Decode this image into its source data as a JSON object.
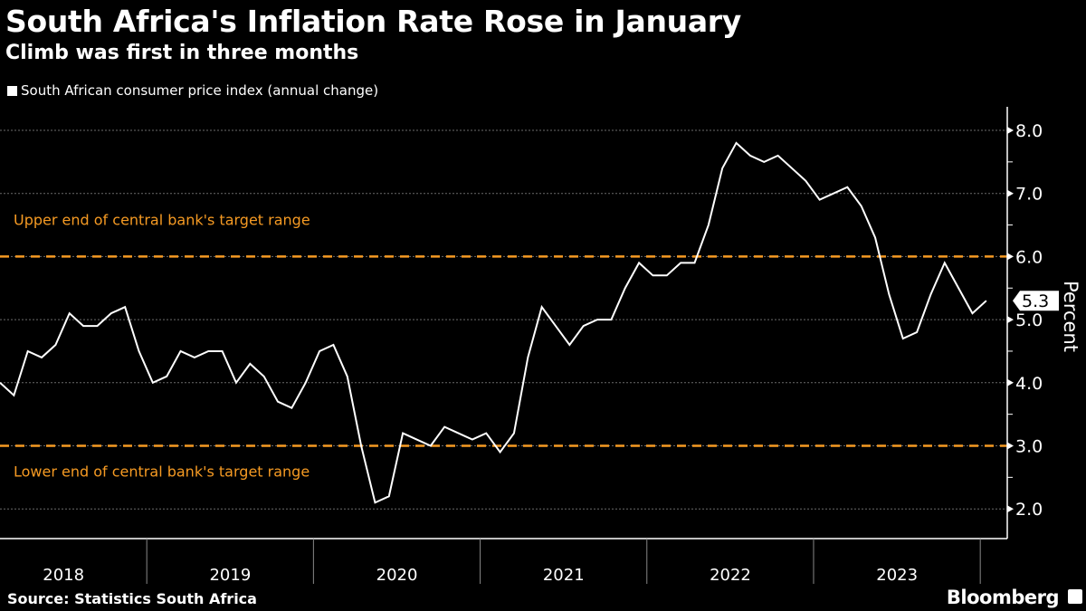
{
  "header": {
    "title": "South Africa's Inflation Rate Rose in January",
    "subtitle": "Climb was first in three months"
  },
  "legend": {
    "label": "South African consumer price index (annual change)"
  },
  "footer": {
    "source": "Source: Statistics South Africa",
    "brand": "Bloomberg"
  },
  "colors": {
    "line": "#ffffff",
    "reference": "#f59a23",
    "grid": "#6b6b6b"
  },
  "chart_data": {
    "type": "line",
    "title": "South Africa's Inflation Rate Rose in January",
    "ylabel": "Percent",
    "ylim": [
      1.5,
      8.4
    ],
    "yticks": [
      "2.0",
      "3.0",
      "4.0",
      "5.0",
      "6.0",
      "7.0",
      "8.0"
    ],
    "ytick_values": [
      2,
      3,
      4,
      5,
      6,
      7,
      8
    ],
    "xticks": [
      "2018",
      "2019",
      "2020",
      "2021",
      "2022",
      "2023"
    ],
    "start": "2018-02",
    "end": "2024-01",
    "last_value_label": "5.3",
    "reference_lines": [
      {
        "value": 6.0,
        "label": "Upper end of central bank's target range"
      },
      {
        "value": 3.0,
        "label": "Lower end of central bank's target range"
      }
    ],
    "series": [
      {
        "name": "South African consumer price index (annual change)",
        "values": [
          4.0,
          3.8,
          4.5,
          4.4,
          4.6,
          5.1,
          4.9,
          4.9,
          5.1,
          5.2,
          4.5,
          4.0,
          4.1,
          4.5,
          4.4,
          4.5,
          4.5,
          4.0,
          4.3,
          4.1,
          3.7,
          3.6,
          4.0,
          4.5,
          4.6,
          4.1,
          3.0,
          2.1,
          2.2,
          3.2,
          3.1,
          3.0,
          3.3,
          3.2,
          3.1,
          3.2,
          2.9,
          3.2,
          4.4,
          5.2,
          4.9,
          4.6,
          4.9,
          5.0,
          5.0,
          5.5,
          5.9,
          5.7,
          5.7,
          5.9,
          5.9,
          6.5,
          7.4,
          7.8,
          7.6,
          7.5,
          7.6,
          7.4,
          7.2,
          6.9,
          7.0,
          7.1,
          6.8,
          6.3,
          5.4,
          4.7,
          4.8,
          5.4,
          5.9,
          5.5,
          5.1,
          5.3
        ]
      }
    ]
  }
}
